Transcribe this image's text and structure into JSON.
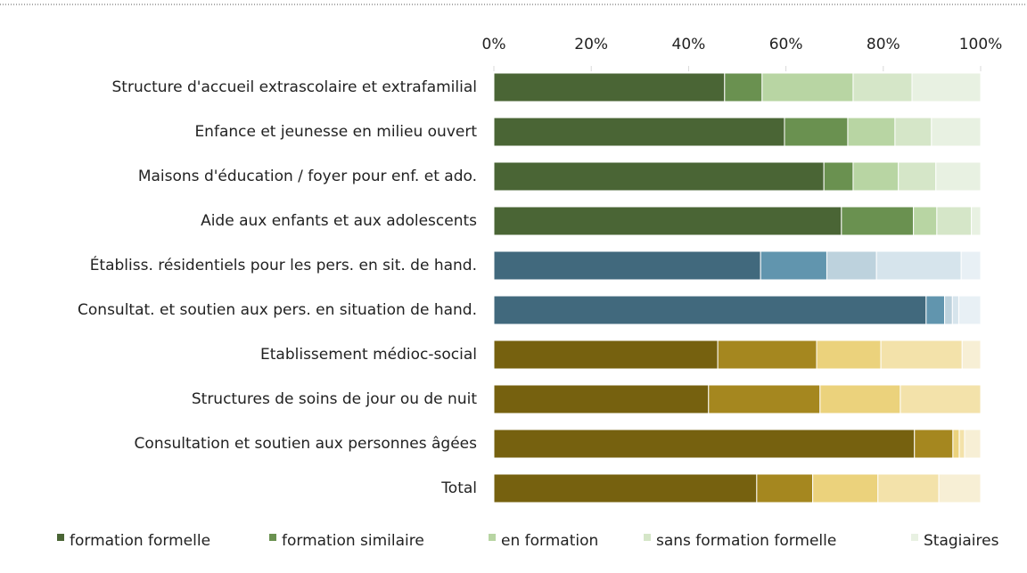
{
  "chart_data": {
    "type": "stacked-bar-horizontal",
    "categories": [
      "Structure d'accueil extrascolaire et extrafamilial",
      "Enfance et jeunesse en milieu ouvert",
      "Maisons d'éducation / foyer pour enf. et ado.",
      "Aide aux enfants et aux adolescents",
      "Établiss. résidentiels pour les pers. en sit. de hand.",
      "Consultat. et soutien aux pers. en situation de hand.",
      "Etablissement médioc-social",
      "Structures de soins de jour ou de nuit",
      "Consultation et soutien aux personnes âgées",
      "Total"
    ],
    "series": [
      {
        "name": "formation formelle",
        "color": "#4a6535",
        "values": [
          47.4,
          59.7,
          67.8,
          71.4,
          54.8,
          88.8,
          46.0,
          44.1,
          86.4,
          54.0
        ]
      },
      {
        "name": "formation similaire",
        "color": "#6a9150",
        "values": [
          7.7,
          13.0,
          6.0,
          14.8,
          13.6,
          3.8,
          20.3,
          22.9,
          7.9,
          11.5
        ]
      },
      {
        "name": "en formation",
        "color": "#b8d5a3",
        "values": [
          18.7,
          9.7,
          9.3,
          4.8,
          10.2,
          1.6,
          13.2,
          16.5,
          1.3,
          13.4
        ]
      },
      {
        "name": "sans formation formelle",
        "color": "#d5e6c8",
        "values": [
          12.1,
          7.5,
          7.7,
          7.1,
          17.4,
          1.3,
          16.7,
          16.5,
          1.1,
          12.5
        ]
      },
      {
        "name": "Stagiaires",
        "color": "#e8f1e2",
        "values": [
          14.1,
          10.1,
          9.2,
          1.9,
          4.0,
          4.5,
          3.8,
          0,
          3.3,
          8.6
        ]
      }
    ],
    "palettes": [
      [
        "#4a6535",
        "#6a9150",
        "#b8d5a3",
        "#d5e6c8",
        "#e8f1e2"
      ],
      [
        "#41697d",
        "#6195ae",
        "#bdd2dd",
        "#d6e4ec",
        "#e8f0f5"
      ],
      [
        "#76610f",
        "#a5871f",
        "#ebd27c",
        "#f3e2aa",
        "#f7efd5"
      ]
    ],
    "category_palette": [
      0,
      0,
      0,
      0,
      1,
      1,
      2,
      2,
      2,
      2
    ],
    "xlim": [
      0,
      100
    ],
    "xticks": [
      {
        "value": 0,
        "label": "0%"
      },
      {
        "value": 20,
        "label": "20%"
      },
      {
        "value": 40,
        "label": "40%"
      },
      {
        "value": 60,
        "label": "60%"
      },
      {
        "value": 80,
        "label": "80%"
      },
      {
        "value": 100,
        "label": "100%"
      }
    ],
    "legend": "bottom"
  }
}
